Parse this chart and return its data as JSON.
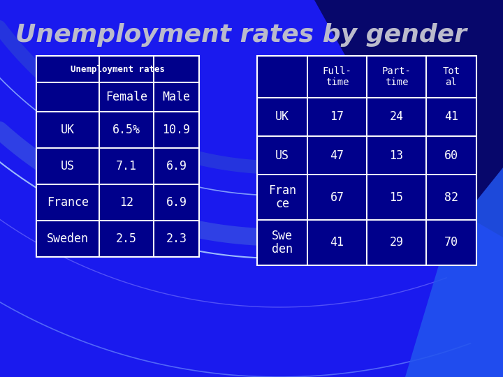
{
  "title": "Unemployment rates by gender",
  "title_fontsize": 26,
  "title_color": "#bbbbcc",
  "bg_color": "#1a1aee",
  "table1_header": "Unemployment rates",
  "table1_rows": [
    [
      "",
      "Female",
      "Male"
    ],
    [
      "UK",
      "6.5%",
      "10.9"
    ],
    [
      "US",
      "7.1",
      "6.9"
    ],
    [
      "France",
      "12",
      "6.9"
    ],
    [
      "Sweden",
      "2.5",
      "2.3"
    ]
  ],
  "table2_rows": [
    [
      "",
      "Full-\ntime",
      "Part-\ntime",
      "Tot\nal"
    ],
    [
      "UK",
      "17",
      "24",
      "41"
    ],
    [
      "US",
      "47",
      "13",
      "60"
    ],
    [
      "Fran\nce",
      "67",
      "15",
      "82"
    ],
    [
      "Swe\nden",
      "41",
      "29",
      "70"
    ]
  ],
  "table_bg": "#00008B",
  "table_border": "#ffffff",
  "table_text": "#ffffff"
}
